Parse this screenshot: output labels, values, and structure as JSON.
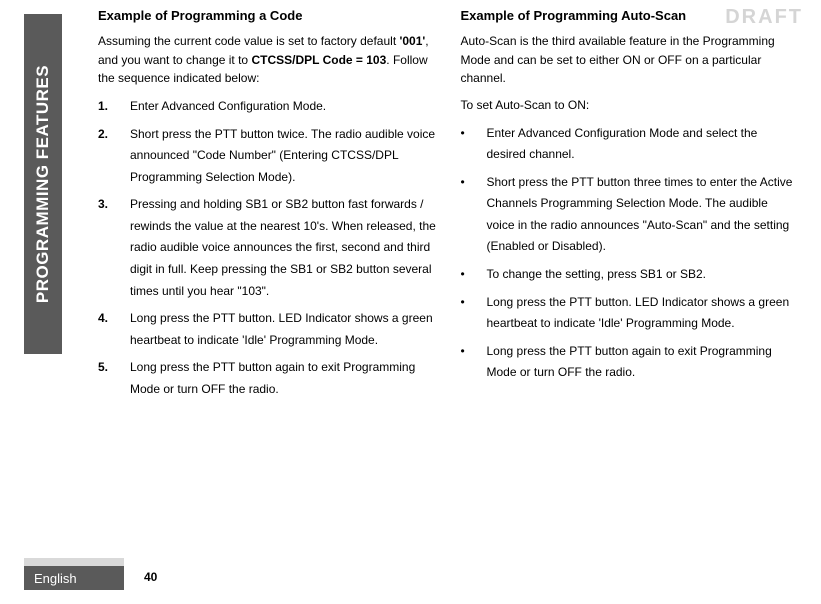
{
  "watermark": "DRAFT",
  "side_tab": "PROGRAMMING FEATURES",
  "left": {
    "heading": "Example of Programming a Code",
    "intro_a": "Assuming the current code value is set to factory default ",
    "intro_bold1": "'001'",
    "intro_b": ", and you want to change it to ",
    "intro_bold2": "CTCSS/DPL Code = 103",
    "intro_c": ". Follow the sequence indicated below:",
    "steps": [
      "Enter Advanced Configuration Mode.",
      "Short press the PTT button twice. The radio audible voice announced \"Code Number\" (Entering CTCSS/DPL Programming Selection Mode).",
      "Pressing and holding SB1 or SB2 button fast forwards / rewinds the value at the nearest 10's. When released, the radio audible voice announces the first, second and third digit in full. Keep pressing the SB1 or SB2 button several times until you hear \"103\".",
      "Long press the PTT button. LED Indicator shows a green heartbeat to indicate 'Idle' Programming Mode.",
      "Long press the PTT button again to exit Programming Mode or turn OFF the radio."
    ]
  },
  "right": {
    "heading": "Example of Programming Auto-Scan",
    "para1": "Auto-Scan is the third available feature in the Programming Mode and can be set to either ON or OFF on a particular channel.",
    "para2": "To set Auto-Scan to ON:",
    "bullets": [
      "Enter Advanced Configuration Mode and select the desired channel.",
      "Short press the PTT button three times to enter the Active Channels Programming Selection Mode. The audible voice in the radio announces \"Auto-Scan\" and the setting (Enabled or Disabled).",
      "To change the setting, press SB1 or SB2.",
      "Long press the PTT button. LED Indicator shows a green heartbeat to indicate 'Idle' Programming Mode.",
      "Long press the PTT button again to exit Programming Mode or turn OFF the radio."
    ]
  },
  "footer": {
    "language": "English",
    "page": "40"
  }
}
